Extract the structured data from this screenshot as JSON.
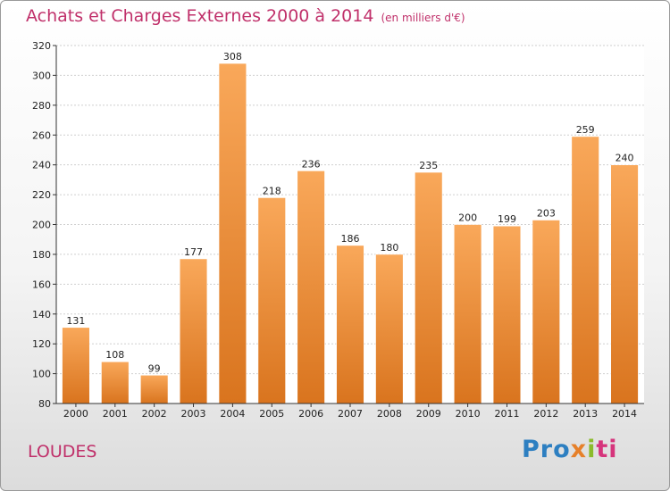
{
  "header": {
    "title": "Achats et Charges Externes 2000 à 2014",
    "unit": "(en milliers d'€)"
  },
  "footer": {
    "commune": "LOUDES",
    "brand": {
      "p1": "Pro",
      "p2": "x",
      "p3": "i",
      "p4": "ti"
    }
  },
  "colors": {
    "bar_top": "#f9a85a",
    "bar_bottom": "#d9741e",
    "title": "#c0306a",
    "grid": "#cfcfcf"
  },
  "chart_data": {
    "type": "bar",
    "categories": [
      "2000",
      "2001",
      "2002",
      "2003",
      "2004",
      "2005",
      "2006",
      "2007",
      "2008",
      "2009",
      "2010",
      "2011",
      "2012",
      "2013",
      "2014"
    ],
    "values": [
      131,
      108,
      99,
      177,
      308,
      218,
      236,
      186,
      180,
      235,
      200,
      199,
      203,
      259,
      240
    ],
    "title": "Achats et Charges Externes 2000 à 2014",
    "ylim": [
      80,
      320
    ],
    "yticks": [
      80,
      100,
      120,
      140,
      160,
      180,
      200,
      220,
      240,
      260,
      280,
      300,
      320
    ],
    "grid": true,
    "legend": "none"
  }
}
